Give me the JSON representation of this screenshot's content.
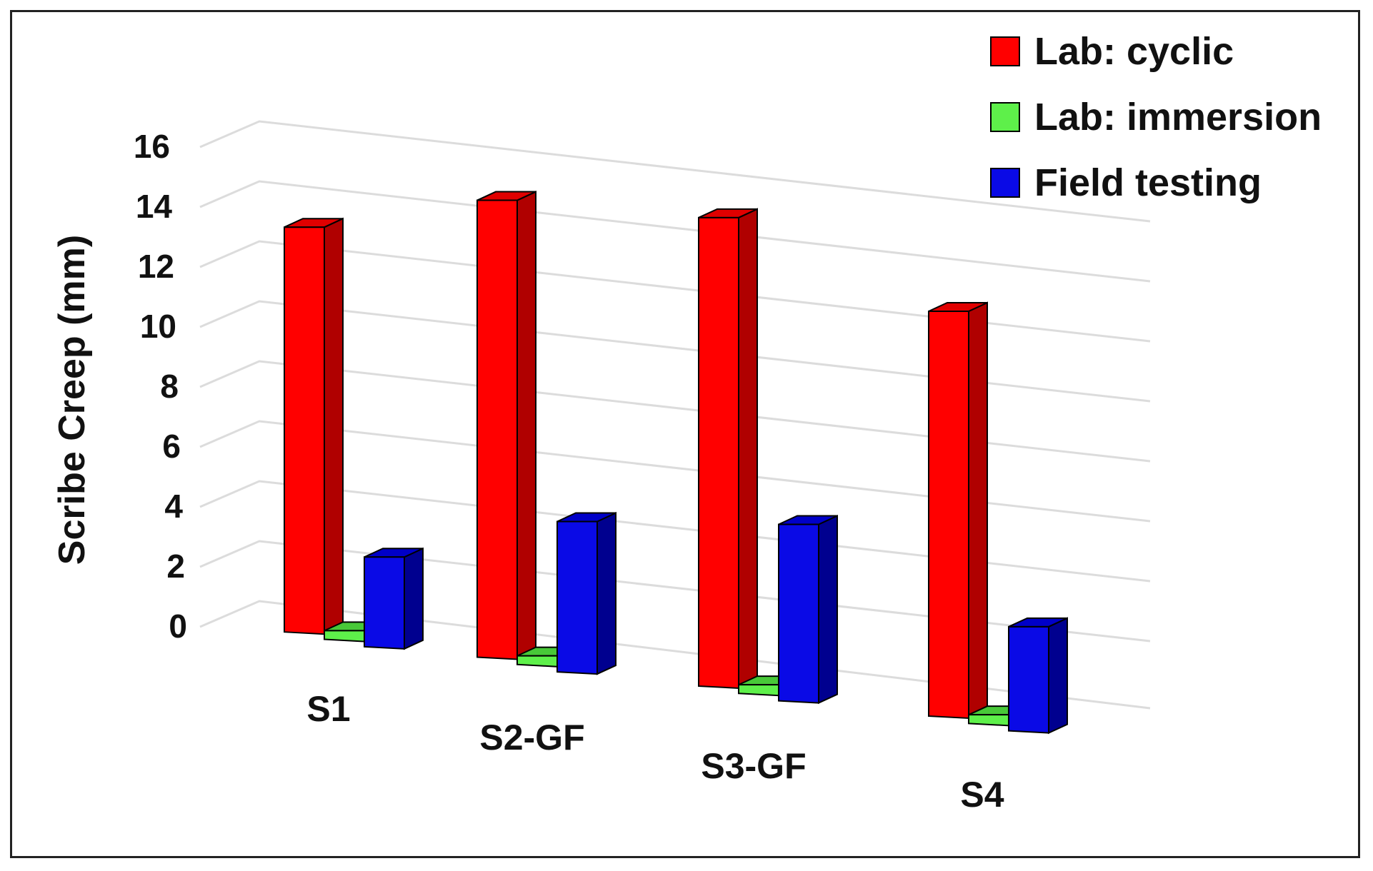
{
  "chart_data": {
    "type": "bar",
    "title": "",
    "xlabel": "",
    "ylabel": "Scribe Creep (mm)",
    "ylim": [
      0,
      16
    ],
    "yticks": [
      "0",
      "2",
      "4",
      "6",
      "8",
      "10",
      "12",
      "14",
      "16"
    ],
    "categories": [
      "S1",
      "S2-GF",
      "S3-GF",
      "S4"
    ],
    "series": [
      {
        "name": "Lab: cyclic",
        "values": [
          14.0,
          15.8,
          16.2,
          14.0
        ]
      },
      {
        "name": "Lab: immersion",
        "values": [
          0.3,
          0.3,
          0.3,
          0.3
        ]
      },
      {
        "name": "Field testing",
        "values": [
          3.1,
          5.2,
          6.1,
          3.6
        ]
      }
    ],
    "legend_position": "top-right",
    "grid": true
  },
  "colors": {
    "series": [
      {
        "front": "#ff0000",
        "side": "#b00000",
        "top": "#e00000"
      },
      {
        "front": "#5ef04a",
        "side": "#2f9a25",
        "top": "#48c838"
      },
      {
        "front": "#0a0ae6",
        "side": "#00008f",
        "top": "#0000c8"
      }
    ],
    "grid": "#dcdcdc",
    "outline": "#000000"
  }
}
